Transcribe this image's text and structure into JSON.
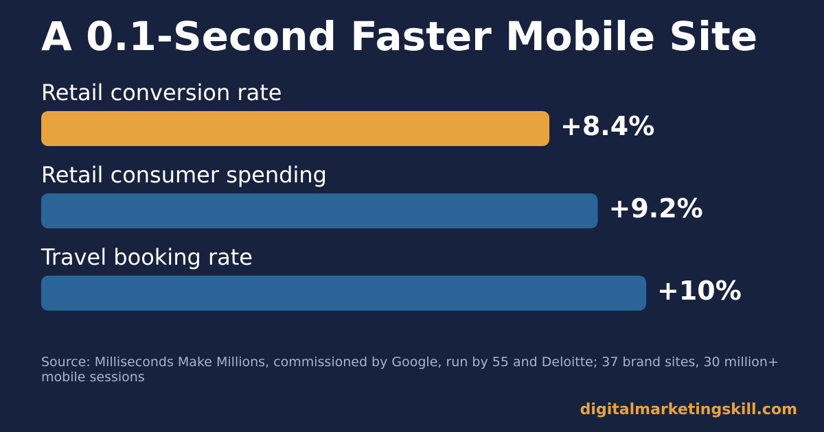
{
  "title": "A 0.1-Second Faster Mobile Site",
  "source": "Source: Milliseconds Make Millions, commissioned by Google, run by 55 and Deloitte; 37 brand sites, 30 million+ mobile sessions",
  "brand": "digitalmarketingskill.com",
  "colors": {
    "background": "#16223e",
    "highlight": "#e8a23e",
    "bar": "#2b6497",
    "text": "#ffffff",
    "source_text": "#a7b4cf"
  },
  "chart_data": {
    "type": "bar",
    "orientation": "horizontal",
    "categories": [
      "Retail conversion rate",
      "Retail consumer spending",
      "Travel booking rate"
    ],
    "values": [
      8.4,
      9.2,
      10
    ],
    "value_labels": [
      "+8.4%",
      "+9.2%",
      "+10%"
    ],
    "highlighted_index": 0,
    "xlim": [
      0,
      10
    ],
    "grid": false,
    "legend": "none"
  }
}
